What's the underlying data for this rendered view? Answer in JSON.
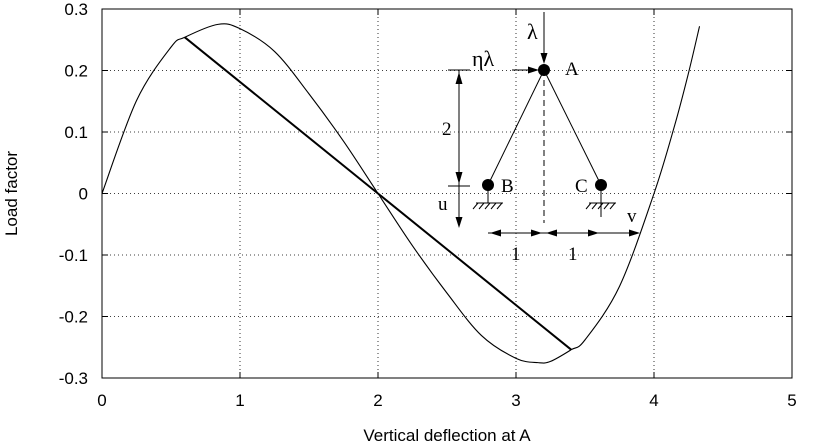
{
  "chart_data": {
    "type": "line",
    "title": "",
    "xlabel": "Vertical deflection at A",
    "ylabel": "Load factor",
    "xlim": [
      0,
      5
    ],
    "ylim": [
      -0.3,
      0.3
    ],
    "x_ticks": [
      0,
      1,
      2,
      3,
      4,
      5
    ],
    "x_tick_labels": [
      "0",
      "1",
      "2",
      "3",
      "4",
      "5"
    ],
    "y_ticks": [
      -0.3,
      -0.2,
      -0.1,
      0,
      0.1,
      0.2,
      0.3
    ],
    "y_tick_labels": [
      "-0.3",
      "-0.2",
      "-0.1",
      "0",
      "0.1",
      "0.2",
      "0.3"
    ],
    "grid": true,
    "series": [
      {
        "style": "thin",
        "x": [
          0,
          0.25,
          0.5,
          0.6,
          0.84,
          1.0,
          1.25,
          1.5,
          1.75,
          2.0,
          2.25,
          2.5,
          2.75,
          3.0,
          3.16,
          3.25,
          3.4,
          3.5,
          3.75,
          4.0,
          4.15,
          4.25,
          4.33
        ],
        "y": [
          0,
          0.151,
          0.238,
          0.254,
          0.275,
          0.268,
          0.231,
          0.162,
          0.085,
          0,
          -0.085,
          -0.162,
          -0.231,
          -0.268,
          -0.275,
          -0.273,
          -0.254,
          -0.238,
          -0.151,
          0,
          0.111,
          0.196,
          0.272
        ]
      },
      {
        "style": "thick",
        "x": [
          0.6,
          3.4
        ],
        "y": [
          0.254,
          -0.254
        ]
      }
    ],
    "inset_diagram": {
      "labels": {
        "load": "λ",
        "horizontal_load": "ηλ",
        "node_a": "A",
        "node_b": "B",
        "node_c": "C",
        "height": "2",
        "u_label": "u",
        "v_label": "v",
        "span_left": "1",
        "span_right": "1"
      }
    }
  }
}
